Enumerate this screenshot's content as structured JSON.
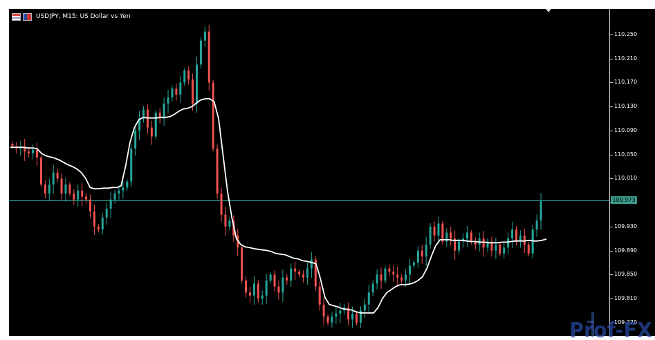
{
  "window": {
    "title": "USDJPY, M15:  US Dollar vs Yen",
    "icons": [
      "table-icon",
      "flag-icon"
    ]
  },
  "price_axis": {
    "ticks": [
      "110.250",
      "110.210",
      "110.170",
      "110.130",
      "110.090",
      "110.050",
      "110.010",
      "109.970",
      "109.930",
      "109.890",
      "109.850",
      "109.810",
      "109.770"
    ],
    "current_price": "109.973"
  },
  "logo": {
    "text": "Prof-FX"
  },
  "colors": {
    "background": "#000000",
    "bull": "#26a69a",
    "bear": "#ef5350",
    "moving_average": "#ffffff",
    "price_line": "#26a69a"
  },
  "chart_data": {
    "type": "candlestick",
    "symbol": "USDJPY",
    "timeframe": "M15",
    "ylim": [
      109.77,
      110.27
    ],
    "current_price": 109.973,
    "closes": [
      110.064,
      110.06,
      110.063,
      110.055,
      110.052,
      110.058,
      110.045,
      110.0,
      109.985,
      110.0,
      110.02,
      110.01,
      109.985,
      110.0,
      109.985,
      109.975,
      109.99,
      109.98,
      109.975,
      109.955,
      109.93,
      109.925,
      109.945,
      109.96,
      109.975,
      109.985,
      109.99,
      109.995,
      110.005,
      110.06,
      110.09,
      110.11,
      110.125,
      110.095,
      110.08,
      110.12,
      110.11,
      110.135,
      110.145,
      110.16,
      110.15,
      110.17,
      110.19,
      110.175,
      110.135,
      110.2,
      110.24,
      110.255,
      110.17,
      110.06,
      109.985,
      109.95,
      109.93,
      109.94,
      109.915,
      109.895,
      109.84,
      109.82,
      109.815,
      109.835,
      109.81,
      109.815,
      109.84,
      109.85,
      109.83,
      109.82,
      109.845,
      109.84,
      109.86,
      109.855,
      109.85,
      109.845,
      109.86,
      109.875,
      109.83,
      109.8,
      109.78,
      109.77,
      109.78,
      109.785,
      109.79,
      109.795,
      109.775,
      109.785,
      109.77,
      109.79,
      109.8,
      109.82,
      109.835,
      109.85,
      109.84,
      109.86,
      109.855,
      109.85,
      109.845,
      109.84,
      109.85,
      109.865,
      109.87,
      109.89,
      109.88,
      109.9,
      109.93,
      109.915,
      109.935,
      109.905,
      109.92,
      109.91,
      109.89,
      109.905,
      109.91,
      109.92,
      109.905,
      109.9,
      109.91,
      109.895,
      109.905,
      109.89,
      109.9,
      109.885,
      109.895,
      109.91,
      109.925,
      109.905,
      109.915,
      109.9,
      109.885,
      109.925,
      109.94,
      109.973
    ],
    "moving_average": [
      110.062,
      110.062,
      110.062,
      110.062,
      110.061,
      110.061,
      110.06,
      110.052,
      110.048,
      110.046,
      110.044,
      110.041,
      110.037,
      110.033,
      110.03,
      110.026,
      110.02,
      110.01,
      109.995,
      109.993,
      109.993,
      109.994,
      109.994,
      109.995,
      109.995,
      109.998,
      110.03,
      110.07,
      110.095,
      110.108,
      110.112,
      110.111,
      110.111,
      110.111,
      110.112,
      110.112,
      110.113,
      110.117,
      110.122,
      110.126,
      110.127,
      110.13,
      110.136,
      110.141,
      110.143,
      110.143,
      110.138,
      110.11,
      110.05,
      109.99,
      109.945,
      109.91,
      109.9,
      109.896,
      109.895,
      109.893,
      109.892,
      109.891,
      109.89,
      109.888,
      109.885,
      109.884,
      109.883,
      109.88,
      109.877,
      109.876,
      109.873,
      109.872,
      109.87,
      109.868,
      109.843,
      109.812,
      109.8,
      109.798,
      109.796,
      109.793,
      109.792,
      109.791,
      109.788,
      109.786,
      109.786,
      109.786,
      109.786,
      109.795,
      109.81,
      109.82,
      109.825,
      109.83,
      109.833,
      109.833,
      109.834,
      109.836,
      109.84,
      109.846,
      109.86,
      109.88,
      109.898,
      109.908,
      109.908,
      109.908,
      109.907,
      109.907,
      109.907,
      109.906,
      109.905,
      109.905,
      109.904,
      109.904,
      109.903,
      109.903,
      109.903,
      109.904,
      109.904,
      109.905,
      109.906,
      109.906,
      109.906,
      109.907,
      109.906,
      109.906,
      109.907,
      109.909
    ]
  }
}
